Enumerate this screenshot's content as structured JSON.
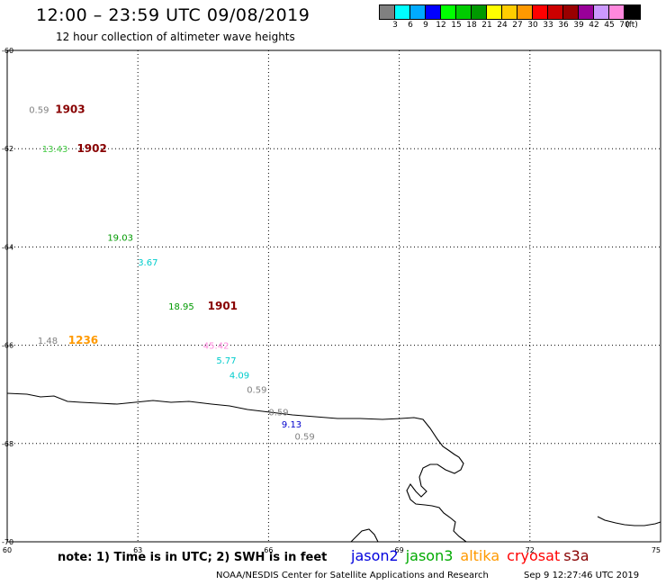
{
  "header": {
    "title": "12:00 – 23:59 UTC 09/08/2019",
    "subtitle": "12 hour collection of altimeter wave heights"
  },
  "colorbar": {
    "colors": [
      "#808080",
      "#00ffff",
      "#00aaff",
      "#0000ff",
      "#00ff00",
      "#00cc00",
      "#009900",
      "#ffff00",
      "#ffcc00",
      "#ff9900",
      "#ff0000",
      "#cc0000",
      "#990000",
      "#990099",
      "#cc99ff",
      "#ff88dd",
      "#000000"
    ],
    "labels": [
      "3",
      "6",
      "9",
      "12",
      "15",
      "18",
      "21",
      "24",
      "27",
      "30",
      "33",
      "36",
      "39",
      "42",
      "45",
      "70",
      "(ft)"
    ]
  },
  "map_axes": {
    "lon_ticks": [
      {
        "lon": 60,
        "label": "60"
      },
      {
        "lon": 63,
        "label": "63"
      },
      {
        "lon": 66,
        "label": "66"
      },
      {
        "lon": 69,
        "label": "69"
      },
      {
        "lon": 72,
        "label": "72"
      },
      {
        "lon": 75,
        "label": "75"
      }
    ],
    "lat_ticks": [
      {
        "lat": -60,
        "label": "-60"
      },
      {
        "lat": -62,
        "label": "-62"
      },
      {
        "lat": -64,
        "label": "-64"
      },
      {
        "lat": -66,
        "label": "-66"
      },
      {
        "lat": -68,
        "label": "-68"
      },
      {
        "lat": -70,
        "label": "-70"
      }
    ],
    "lon_range": [
      60,
      75
    ],
    "lat_range": [
      -70,
      -60
    ],
    "grid": "dotted"
  },
  "observations": [
    {
      "lon": 60.5,
      "lat": -61.2,
      "text": "0.59",
      "color": "#808080"
    },
    {
      "lon": 61.1,
      "lat": -61.2,
      "text": "1903",
      "color": "#880000",
      "bold": true
    },
    {
      "lon": 60.8,
      "lat": -62.0,
      "text": "13.43",
      "color": "#44cc44"
    },
    {
      "lon": 61.6,
      "lat": -62.0,
      "text": "1902",
      "color": "#880000",
      "bold": true
    },
    {
      "lon": 62.3,
      "lat": -63.8,
      "text": "19.03",
      "color": "#009900"
    },
    {
      "lon": 63.0,
      "lat": -64.3,
      "text": "3.67",
      "color": "#00cccc"
    },
    {
      "lon": 63.7,
      "lat": -65.2,
      "text": "18.95",
      "color": "#009900"
    },
    {
      "lon": 64.6,
      "lat": -65.2,
      "text": "1901",
      "color": "#880000",
      "bold": true
    },
    {
      "lon": 60.7,
      "lat": -65.9,
      "text": "1.48",
      "color": "#808080"
    },
    {
      "lon": 61.4,
      "lat": -65.9,
      "text": "1236",
      "color": "#ff9900",
      "bold": true
    },
    {
      "lon": 64.5,
      "lat": -66.0,
      "text": "45.42",
      "color": "#ff88dd"
    },
    {
      "lon": 64.8,
      "lat": -66.3,
      "text": "5.77",
      "color": "#00cccc"
    },
    {
      "lon": 65.1,
      "lat": -66.6,
      "text": "4.09",
      "color": "#00cccc"
    },
    {
      "lon": 65.5,
      "lat": -66.9,
      "text": "0.59",
      "color": "#808080"
    },
    {
      "lon": 66.0,
      "lat": -67.35,
      "text": "0.59",
      "color": "#808080"
    },
    {
      "lon": 66.3,
      "lat": -67.6,
      "text": "9.13",
      "color": "#0000cc"
    },
    {
      "lon": 66.6,
      "lat": -67.85,
      "text": "0.59",
      "color": "#808080"
    }
  ],
  "footer": {
    "note": "note: 1) Time is in UTC; 2) SWH is in feet",
    "legend": [
      {
        "label": "jason2",
        "color": "#0000dd"
      },
      {
        "label": "jason3",
        "color": "#00aa00"
      },
      {
        "label": "altika",
        "color": "#ff9900"
      },
      {
        "label": "cryosat",
        "color": "#ff0000"
      },
      {
        "label": "s3a",
        "color": "#880000"
      }
    ],
    "credit": "NOAA/NESDIS Center for Satellite Applications and Research",
    "timestamp": "Sep  9 12:27:46 UTC 2019"
  }
}
